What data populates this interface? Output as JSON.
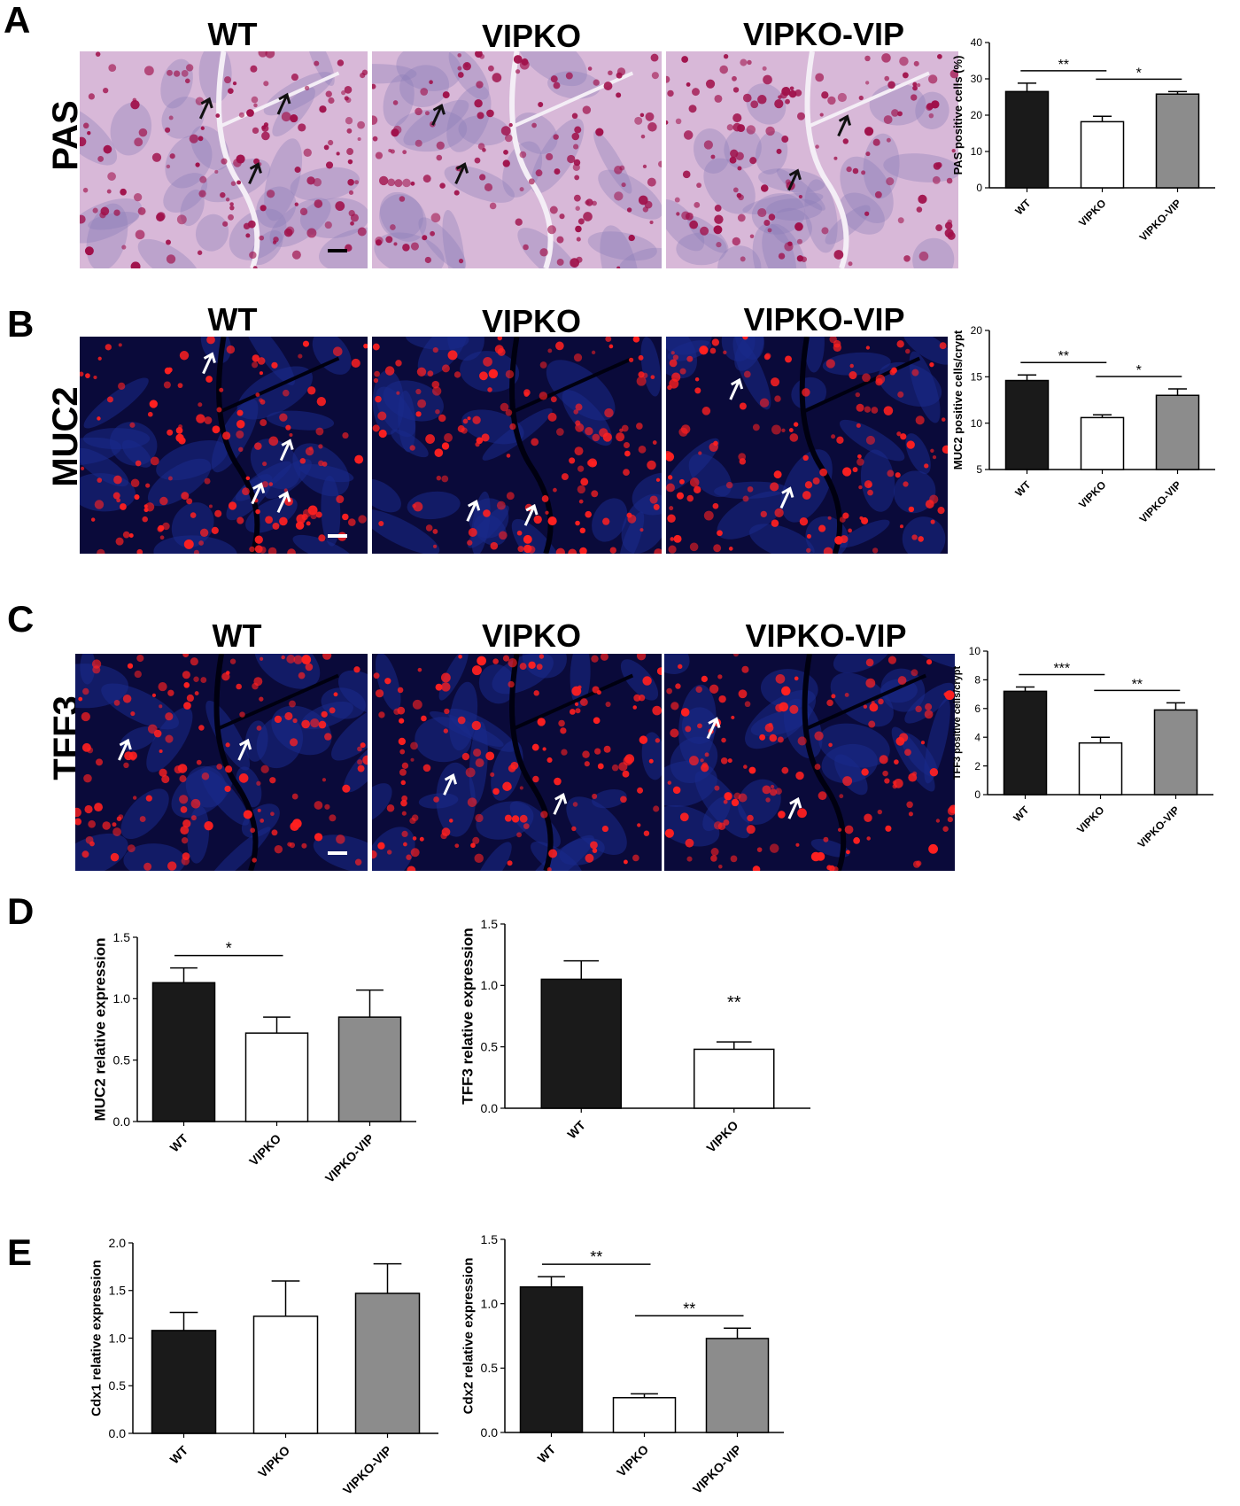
{
  "panels": [
    {
      "id": "A",
      "letter": "A",
      "row_label": "PAS",
      "columns": [
        "WT",
        "VIPKO",
        "VIPKO-VIP"
      ],
      "style": "pas"
    },
    {
      "id": "B",
      "letter": "B",
      "row_label": "MUC2",
      "columns": [
        "WT",
        "VIPKO",
        "VIPKO-VIP"
      ],
      "style": "fluor"
    },
    {
      "id": "C",
      "letter": "C",
      "row_label": "TFF3",
      "columns": [
        "WT",
        "VIPKO",
        "VIPKO-VIP"
      ],
      "style": "fluor"
    },
    {
      "id": "D",
      "letter": "D"
    },
    {
      "id": "E",
      "letter": "E"
    }
  ],
  "colors": {
    "bar_wt": "#1a1a1a",
    "bar_vipko": "#ffffff",
    "bar_vip": "#8c8c8c",
    "pas_bg": "#d8b8d8",
    "pas_cell": "#a0104a",
    "fluor_bg": "#0a0a3a",
    "fluor_cell": "#ff2020",
    "arrow_dark": "#111111",
    "arrow_light": "#ffffff"
  },
  "chart_data": [
    {
      "id": "A-bar",
      "type": "bar",
      "categories": [
        "WT",
        "VIPKO",
        "VIPKO-VIP"
      ],
      "values": [
        26.5,
        18.2,
        25.8
      ],
      "errors": [
        2.3,
        1.5,
        0.7
      ],
      "ylabel": "PAS positive cells (%)",
      "ylim": [
        0,
        40
      ],
      "yticks": [
        "0",
        "10",
        "20",
        "30",
        "40"
      ],
      "sig": [
        {
          "from": 0,
          "to": 1,
          "label": "**"
        },
        {
          "from": 1,
          "to": 2,
          "label": "*"
        }
      ]
    },
    {
      "id": "B-bar",
      "type": "bar",
      "categories": [
        "WT",
        "VIPKO",
        "VIPKO-VIP"
      ],
      "values": [
        14.6,
        10.6,
        13.0
      ],
      "errors": [
        0.6,
        0.3,
        0.7
      ],
      "ylabel": "MUC2 positive cells/crypt",
      "ylim": [
        5,
        20
      ],
      "yticks": [
        "5",
        "10",
        "15",
        "20"
      ],
      "sig": [
        {
          "from": 0,
          "to": 1,
          "label": "**"
        },
        {
          "from": 1,
          "to": 2,
          "label": "*"
        }
      ]
    },
    {
      "id": "C-bar",
      "type": "bar",
      "categories": [
        "WT",
        "VIPKO",
        "VIPKO-VIP"
      ],
      "values": [
        7.2,
        3.6,
        5.9
      ],
      "errors": [
        0.3,
        0.4,
        0.5
      ],
      "ylabel": "TFF3 positive cells/crypt",
      "ylim": [
        0,
        10
      ],
      "yticks": [
        "0",
        "2",
        "4",
        "6",
        "8",
        "10"
      ],
      "sig": [
        {
          "from": 0,
          "to": 1,
          "label": "***"
        },
        {
          "from": 1,
          "to": 2,
          "label": "**"
        }
      ]
    },
    {
      "id": "D-left",
      "type": "bar",
      "categories": [
        "WT",
        "VIPKO",
        "VIPKO-VIP"
      ],
      "values": [
        1.13,
        0.72,
        0.85
      ],
      "errors": [
        0.12,
        0.13,
        0.22
      ],
      "ylabel": "MUC2 relative expression",
      "ylim": [
        0,
        1.5
      ],
      "yticks": [
        "0.0",
        "0.5",
        "1.0",
        "1.5"
      ],
      "sig": [
        {
          "from": 0,
          "to": 1,
          "label": "*"
        }
      ]
    },
    {
      "id": "D-right",
      "type": "bar",
      "categories": [
        "WT",
        "VIPKO"
      ],
      "values": [
        1.05,
        0.48
      ],
      "errors": [
        0.15,
        0.06
      ],
      "ylabel": "TFF3 relative expression",
      "ylim": [
        0,
        1.5
      ],
      "yticks": [
        "0.0",
        "0.5",
        "1.0",
        "1.5"
      ],
      "star": {
        "index": 1,
        "label": "**"
      }
    },
    {
      "id": "E-left",
      "type": "bar",
      "categories": [
        "WT",
        "VIPKO",
        "VIPKO-VIP"
      ],
      "values": [
        1.08,
        1.23,
        1.47
      ],
      "errors": [
        0.19,
        0.37,
        0.31
      ],
      "ylabel": "Cdx1 relative  expression",
      "ylim": [
        0,
        2.0
      ],
      "yticks": [
        "0.0",
        "0.5",
        "1.0",
        "1.5",
        "2.0"
      ],
      "sig": []
    },
    {
      "id": "E-right",
      "type": "bar",
      "categories": [
        "WT",
        "VIPKO",
        "VIPKO-VIP"
      ],
      "values": [
        1.13,
        0.27,
        0.73
      ],
      "errors": [
        0.08,
        0.03,
        0.08
      ],
      "ylabel": "Cdx2 relative expression",
      "ylim": [
        0,
        1.5
      ],
      "yticks": [
        "0.0",
        "0.5",
        "1.0",
        "1.5"
      ],
      "sig": [
        {
          "from": 0,
          "to": 1,
          "label": "**"
        },
        {
          "from": 1,
          "to": 2,
          "label": "**"
        }
      ]
    }
  ]
}
